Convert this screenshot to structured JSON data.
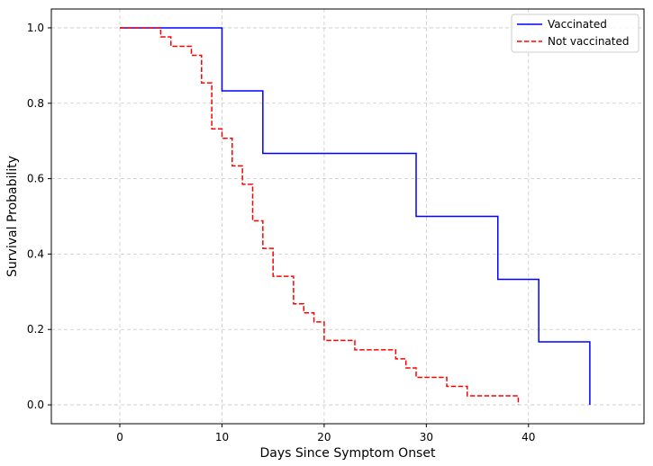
{
  "chart_data": {
    "type": "line",
    "subtype": "step",
    "title": "",
    "xlabel": "Days Since Symptom Onset",
    "ylabel": "Survival Probability",
    "xlim": [
      -6.7,
      51.3
    ],
    "ylim": [
      -0.05,
      1.05
    ],
    "x_ticks": [
      0,
      10,
      20,
      30,
      40
    ],
    "x_tick_labels": [
      "0",
      "10",
      "20",
      "30",
      "40"
    ],
    "y_ticks": [
      0.0,
      0.2,
      0.4,
      0.6,
      0.8,
      1.0
    ],
    "y_tick_labels": [
      "0.0",
      "0.2",
      "0.4",
      "0.6",
      "0.8",
      "1.0"
    ],
    "grid": true,
    "legend_position": "top-right",
    "series": [
      {
        "name": "Vaccinated",
        "color": "#0000ff",
        "line_style": "solid",
        "steps": [
          [
            0,
            1.0
          ],
          [
            10,
            0.833
          ],
          [
            14,
            0.667
          ],
          [
            29,
            0.5
          ],
          [
            37,
            0.333
          ],
          [
            41,
            0.167
          ],
          [
            46,
            0.0
          ]
        ],
        "end_x": 46
      },
      {
        "name": "Not vaccinated",
        "color": "#ff0000",
        "line_style": "dashed",
        "steps": [
          [
            0,
            1.0
          ],
          [
            4,
            0.976
          ],
          [
            5,
            0.951
          ],
          [
            7,
            0.927
          ],
          [
            8,
            0.854
          ],
          [
            9,
            0.732
          ],
          [
            10,
            0.707
          ],
          [
            11,
            0.634
          ],
          [
            12,
            0.585
          ],
          [
            13,
            0.488
          ],
          [
            14,
            0.415
          ],
          [
            15,
            0.341
          ],
          [
            17,
            0.268
          ],
          [
            18,
            0.244
          ],
          [
            19,
            0.22
          ],
          [
            20,
            0.171
          ],
          [
            23,
            0.146
          ],
          [
            27,
            0.122
          ],
          [
            28,
            0.098
          ],
          [
            29,
            0.073
          ],
          [
            32,
            0.049
          ],
          [
            34,
            0.024
          ],
          [
            39,
            0.0
          ]
        ],
        "end_x": 39
      }
    ]
  }
}
